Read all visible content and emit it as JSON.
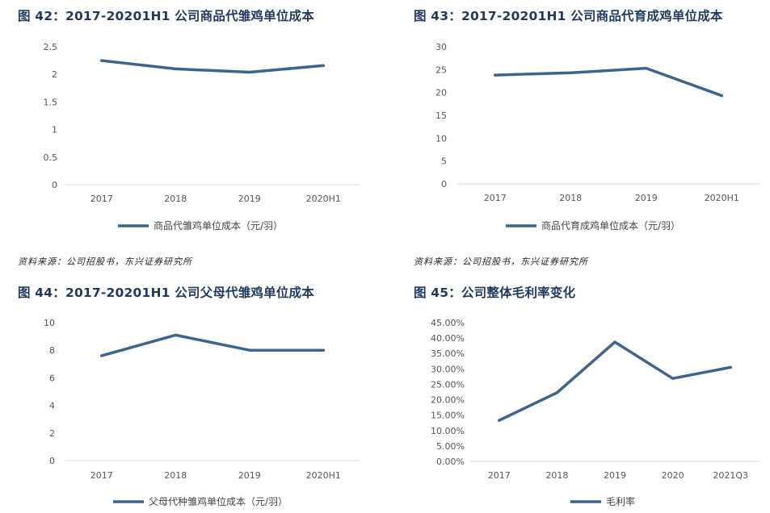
{
  "figures": [
    {
      "title": "图 42：2017-20201H1 公司商品代雏鸡单位成本"
    },
    {
      "title": "图 43：2017-20201H1 公司商品代育成鸡单位成本"
    },
    {
      "title": "图 44：2017-20201H1 公司父母代雏鸡单位成本"
    },
    {
      "title": "图 45：公司整体毛利率变化"
    }
  ],
  "sources": [
    {
      "text": "资料来源：公司招股书，东兴证券研究所"
    },
    {
      "text": "资料来源：公司招股书，东兴证券研究所"
    }
  ],
  "colors": {
    "line": "#3c6491",
    "axis": "#d9d9d9",
    "title": "#1f3a5f"
  },
  "chart_data": [
    {
      "type": "line",
      "categories": [
        "2017",
        "2018",
        "2019",
        "2020H1"
      ],
      "series": [
        {
          "name": "商品代雏鸡单位成本（元/羽）",
          "values": [
            2.25,
            2.1,
            2.04,
            2.16
          ]
        }
      ],
      "ylim": [
        0,
        2.5
      ],
      "yticks": [
        "0",
        "0.5",
        "1",
        "1.5",
        "2",
        "2.5"
      ],
      "grid": false,
      "legend": "bottom"
    },
    {
      "type": "line",
      "categories": [
        "2017",
        "2018",
        "2019",
        "2020H1"
      ],
      "series": [
        {
          "name": "商品代育成鸡单位成本（元/羽）",
          "values": [
            23.8,
            24.3,
            25.3,
            19.3
          ]
        }
      ],
      "ylim": [
        0,
        30
      ],
      "yticks": [
        "0",
        "5",
        "10",
        "15",
        "20",
        "25",
        "30"
      ],
      "grid": false,
      "legend": "bottom"
    },
    {
      "type": "line",
      "categories": [
        "2017",
        "2018",
        "2019",
        "2020H1"
      ],
      "series": [
        {
          "name": "父母代种雏鸡单位成本（元/羽）",
          "values": [
            7.6,
            9.1,
            8.0,
            8.0
          ]
        }
      ],
      "ylim": [
        0,
        10
      ],
      "yticks": [
        "0",
        "2",
        "4",
        "6",
        "8",
        "10"
      ],
      "grid": false,
      "legend": "bottom"
    },
    {
      "type": "line",
      "categories": [
        "2017",
        "2018",
        "2019",
        "2020",
        "2021Q3"
      ],
      "series": [
        {
          "name": "毛利率",
          "values": [
            13.3,
            22.3,
            38.7,
            26.9,
            30.5
          ]
        }
      ],
      "ylim": [
        0,
        45
      ],
      "yticks": [
        "0.00%",
        "5.00%",
        "10.00%",
        "15.00%",
        "20.00%",
        "25.00%",
        "30.00%",
        "35.00%",
        "40.00%",
        "45.00%"
      ],
      "grid": false,
      "legend": "bottom"
    }
  ]
}
